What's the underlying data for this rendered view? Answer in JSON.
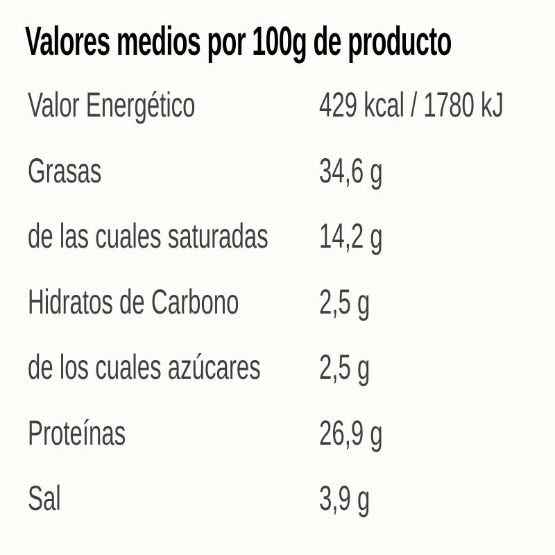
{
  "header": {
    "title": "Valores medios por 100g de producto"
  },
  "table": {
    "rows": [
      [
        "Valor Energético",
        "429 kcal / 1780 kJ"
      ],
      [
        "Grasas",
        "34,6 g"
      ],
      [
        "de las cuales saturadas",
        "14,2 g"
      ],
      [
        "Hidratos de Carbono",
        "2,5 g"
      ],
      [
        "de los cuales azúcares",
        "2,5 g"
      ],
      [
        "Proteínas",
        "26,9 g"
      ],
      [
        "Sal",
        "3,9 g"
      ]
    ]
  }
}
